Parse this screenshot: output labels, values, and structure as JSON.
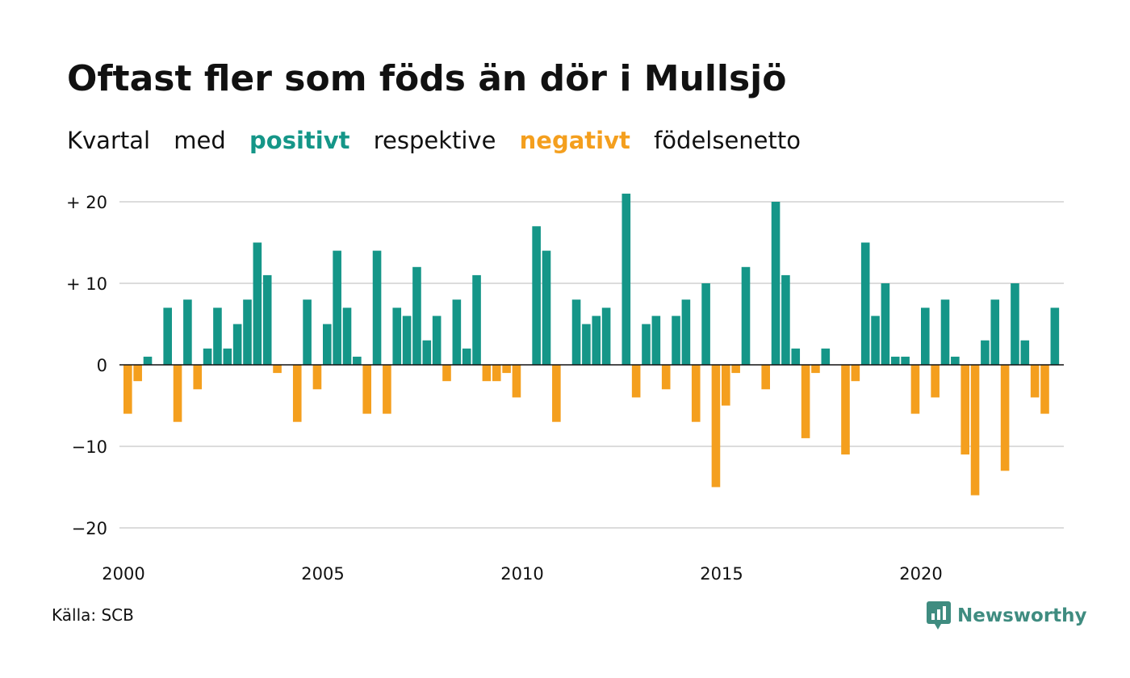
{
  "title": "Oftast fler som föds än dör i Mullsjö",
  "subtitle": {
    "part1": "Kvartal",
    "part2": "med",
    "positive": "positivt",
    "part3": "respektive",
    "negative": "negativt",
    "part4": "födelsenetto"
  },
  "colors": {
    "positive": "#159688",
    "negative": "#f49f1e",
    "grid": "#dcdcdc",
    "baseline": "#111111"
  },
  "source": "Källa: SCB",
  "brand": {
    "name": "Newsworthy",
    "icon": "newsworthy-logo-icon"
  },
  "chart_data": {
    "type": "bar",
    "title": "Oftast fler som föds än dör i Mullsjö",
    "xlabel": "",
    "ylabel": "",
    "ylim": [
      -22,
      21
    ],
    "yticks": [
      {
        "value": 20,
        "label": "+ 20"
      },
      {
        "value": 10,
        "label": "+ 10"
      },
      {
        "value": 0,
        "label": "0"
      },
      {
        "value": -10,
        "label": "−10"
      },
      {
        "value": -20,
        "label": "−20"
      }
    ],
    "xticks": [
      "2000",
      "2005",
      "2010",
      "2015",
      "2020"
    ],
    "grid": true,
    "start_quarter": "2000 Q1",
    "categories": [
      "2000 Q1",
      "2000 Q2",
      "2000 Q3",
      "2000 Q4",
      "2001 Q1",
      "2001 Q2",
      "2001 Q3",
      "2001 Q4",
      "2002 Q1",
      "2002 Q2",
      "2002 Q3",
      "2002 Q4",
      "2003 Q1",
      "2003 Q2",
      "2003 Q3",
      "2003 Q4",
      "2004 Q1",
      "2004 Q2",
      "2004 Q3",
      "2004 Q4",
      "2005 Q1",
      "2005 Q2",
      "2005 Q3",
      "2005 Q4",
      "2006 Q1",
      "2006 Q2",
      "2006 Q3",
      "2006 Q4",
      "2007 Q1",
      "2007 Q2",
      "2007 Q3",
      "2007 Q4",
      "2008 Q1",
      "2008 Q2",
      "2008 Q3",
      "2008 Q4",
      "2009 Q1",
      "2009 Q2",
      "2009 Q3",
      "2009 Q4",
      "2010 Q1",
      "2010 Q2",
      "2010 Q3",
      "2010 Q4",
      "2011 Q1",
      "2011 Q2",
      "2011 Q3",
      "2011 Q4",
      "2012 Q1",
      "2012 Q2",
      "2012 Q3",
      "2012 Q4",
      "2013 Q1",
      "2013 Q2",
      "2013 Q3",
      "2013 Q4",
      "2014 Q1",
      "2014 Q2",
      "2014 Q3",
      "2014 Q4",
      "2015 Q1",
      "2015 Q2",
      "2015 Q3",
      "2015 Q4",
      "2016 Q1",
      "2016 Q2",
      "2016 Q3",
      "2016 Q4",
      "2017 Q1",
      "2017 Q2",
      "2017 Q3",
      "2017 Q4",
      "2018 Q1",
      "2018 Q2",
      "2018 Q3",
      "2018 Q4",
      "2019 Q1",
      "2019 Q2",
      "2019 Q3",
      "2019 Q4",
      "2020 Q1",
      "2020 Q2",
      "2020 Q3",
      "2020 Q4",
      "2021 Q1",
      "2021 Q2",
      "2021 Q3",
      "2021 Q4",
      "2022 Q1",
      "2022 Q2",
      "2022 Q3",
      "2022 Q4",
      "2023 Q1",
      "2023 Q2",
      "2023 Q3",
      "2023 Q4"
    ],
    "values": [
      -6,
      -2,
      1,
      0,
      7,
      -7,
      8,
      -3,
      2,
      7,
      2,
      5,
      8,
      15,
      11,
      -1,
      0,
      -7,
      8,
      -3,
      5,
      14,
      7,
      1,
      -6,
      14,
      -6,
      7,
      6,
      12,
      3,
      6,
      -2,
      8,
      2,
      11,
      -2,
      -2,
      -1,
      -4,
      0,
      17,
      14,
      -7,
      0,
      8,
      5,
      6,
      7,
      0,
      21,
      -4,
      5,
      6,
      -3,
      6,
      8,
      -7,
      10,
      -15,
      -5,
      -1,
      12,
      0,
      -3,
      20,
      11,
      2,
      -9,
      -1,
      2,
      0,
      -11,
      -2,
      15,
      6,
      10,
      1,
      1,
      -6,
      7,
      -4,
      8,
      1,
      -11,
      -16,
      3,
      8,
      -13,
      10,
      3,
      -4,
      -6,
      7,
      0,
      0
    ]
  }
}
